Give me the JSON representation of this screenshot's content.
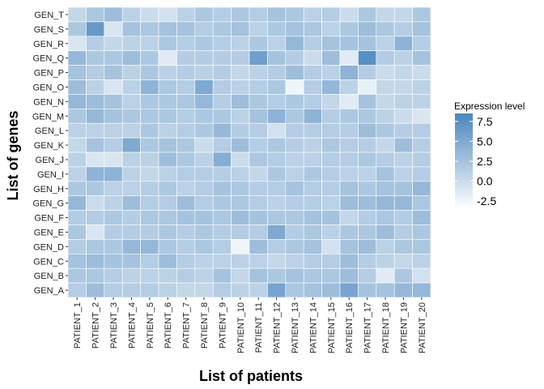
{
  "chart_data": {
    "type": "heatmap",
    "xlabel": "List of patients",
    "ylabel": "List of genes",
    "x": [
      "PATIENT_1",
      "PATIENT_2",
      "PATIENT_3",
      "PATIENT_4",
      "PATIENT_5",
      "PATIENT_6",
      "PATIENT_7",
      "PATIENT_8",
      "PATIENT_9",
      "PATIENT_10",
      "PATIENT_11",
      "PATIENT_12",
      "PATIENT_13",
      "PATIENT_14",
      "PATIENT_15",
      "PATIENT_16",
      "PATIENT_17",
      "PATIENT_18",
      "PATIENT_19",
      "PATIENT_20"
    ],
    "y": [
      "GEN_T",
      "GEN_S",
      "GEN_R",
      "GEN_Q",
      "GEN_P",
      "GEN_O",
      "GEN_N",
      "GEN_M",
      "GEN_L",
      "GEN_K",
      "GEN_J",
      "GEN_I",
      "GEN_H",
      "GEN_G",
      "GEN_F",
      "GEN_E",
      "GEN_D",
      "GEN_C",
      "GEN_B",
      "GEN_A"
    ],
    "values": [
      [
        0.5,
        2,
        3,
        1,
        0,
        -0.5,
        1,
        2,
        1.5,
        2,
        1.5,
        2.5,
        2,
        1,
        1.5,
        0,
        2,
        0.5,
        0.5,
        2
      ],
      [
        2,
        6.5,
        -1,
        2.5,
        2,
        2.5,
        2.5,
        1.5,
        2,
        2.5,
        1,
        2,
        2.5,
        2,
        1,
        2,
        3,
        2,
        1.5,
        2.5
      ],
      [
        -1,
        1.5,
        0.5,
        1,
        1,
        2,
        1.5,
        2,
        1.5,
        1,
        2,
        1,
        3.5,
        1.5,
        2.5,
        2.5,
        2.5,
        1,
        4,
        1.5
      ],
      [
        3.5,
        2,
        2,
        3,
        2,
        -1.5,
        1.5,
        1.5,
        1.5,
        1.5,
        6,
        2.5,
        1.5,
        0,
        3,
        -1.5,
        7.5,
        1.5,
        1,
        2.5
      ],
      [
        2.5,
        1.5,
        2.5,
        1,
        2,
        1,
        1.5,
        1,
        1.5,
        0.5,
        1,
        1.5,
        3,
        1.5,
        1,
        4,
        1.5,
        0,
        0.5,
        0
      ],
      [
        3,
        1,
        -1,
        1,
        4,
        2,
        1.5,
        5,
        1.5,
        1,
        1.5,
        2,
        -2.5,
        1.5,
        3.5,
        1,
        -2,
        0.5,
        0.5,
        1
      ],
      [
        3.5,
        3,
        2.5,
        1,
        2,
        2,
        2,
        3.5,
        1.5,
        3,
        2,
        1.5,
        2,
        1.5,
        0.5,
        -1.5,
        2.5,
        0.5,
        1,
        1
      ],
      [
        2,
        3.5,
        2.5,
        2,
        2,
        2,
        1.5,
        2,
        2,
        1,
        2.5,
        4,
        2,
        4,
        1.5,
        2,
        2,
        1,
        0,
        -1
      ],
      [
        1,
        1,
        1,
        1,
        2,
        1,
        1.5,
        2,
        3.5,
        1.5,
        1.5,
        -0.5,
        1.5,
        1.5,
        1.5,
        1.5,
        3,
        2,
        1.5,
        1.5
      ],
      [
        0.5,
        2.5,
        1.5,
        5,
        2,
        2.5,
        2,
        0,
        1.5,
        3,
        1.5,
        2,
        1.5,
        1,
        2,
        1.5,
        1.5,
        0.5,
        3,
        1.5
      ],
      [
        1,
        -1,
        -1,
        1,
        1,
        3,
        2,
        1,
        4.5,
        0,
        2,
        1.5,
        1,
        1,
        1.5,
        1.5,
        2,
        1.5,
        1,
        1.5
      ],
      [
        1,
        4,
        4,
        1,
        0.5,
        1,
        1.5,
        1.5,
        1.5,
        1,
        0.5,
        2,
        1,
        2,
        1.5,
        1,
        1,
        2.5,
        1,
        1.5
      ],
      [
        2,
        2,
        1,
        1,
        1.5,
        2,
        1,
        1.5,
        2.5,
        2,
        1.5,
        1.5,
        2.5,
        1.5,
        1.5,
        2.5,
        2,
        2.5,
        2.5,
        3.5
      ],
      [
        3.5,
        0,
        1,
        3,
        1.5,
        1.5,
        3,
        1.5,
        2,
        2,
        1.5,
        1,
        1.5,
        1.5,
        1,
        3,
        3,
        3.5,
        3.5,
        2
      ],
      [
        1.5,
        1.5,
        2,
        1.5,
        2,
        2,
        2.5,
        2.5,
        2,
        3,
        2.5,
        2,
        2,
        2.5,
        2.5,
        0.5,
        1.5,
        2,
        1.5,
        3
      ],
      [
        2,
        -1,
        1.5,
        1.5,
        1.5,
        2,
        1.5,
        2,
        1.5,
        1.5,
        1.5,
        5,
        1.5,
        2,
        1,
        2,
        2,
        3,
        1.5,
        2
      ],
      [
        1.5,
        2,
        2,
        3.5,
        3.5,
        2,
        1.5,
        2,
        1.5,
        -2.5,
        3,
        1.5,
        2,
        2.5,
        -0.5,
        2.5,
        3,
        1,
        2,
        2
      ],
      [
        2.5,
        3,
        2.5,
        2.5,
        1.5,
        3,
        1.5,
        1,
        1,
        1,
        1,
        0.5,
        1,
        1.5,
        1.5,
        3,
        1.5,
        1,
        0.5,
        1
      ],
      [
        2,
        2,
        1.5,
        1,
        1,
        1,
        1.5,
        1,
        2.5,
        0.5,
        2.5,
        2,
        2.5,
        2,
        2,
        3,
        1.5,
        -1.5,
        2,
        -0.5
      ],
      [
        1.5,
        3,
        1.5,
        1.5,
        1.5,
        1,
        0.5,
        0.5,
        1.5,
        1,
        1,
        5.5,
        2,
        2.5,
        3,
        5.5,
        2.5,
        2.5,
        3.5,
        3.5
      ]
    ],
    "legend": {
      "title": "Expression level",
      "ticks": [
        "7.5",
        "5.0",
        "2.5",
        "0.0",
        "-2.5"
      ],
      "tick_values": [
        7.5,
        5.0,
        2.5,
        0.0,
        -2.5
      ],
      "range": [
        -3.5,
        8.5
      ],
      "low_color": "#ffffff",
      "high_color": "#4a86bd"
    },
    "grid": true,
    "legend_position": "right"
  }
}
